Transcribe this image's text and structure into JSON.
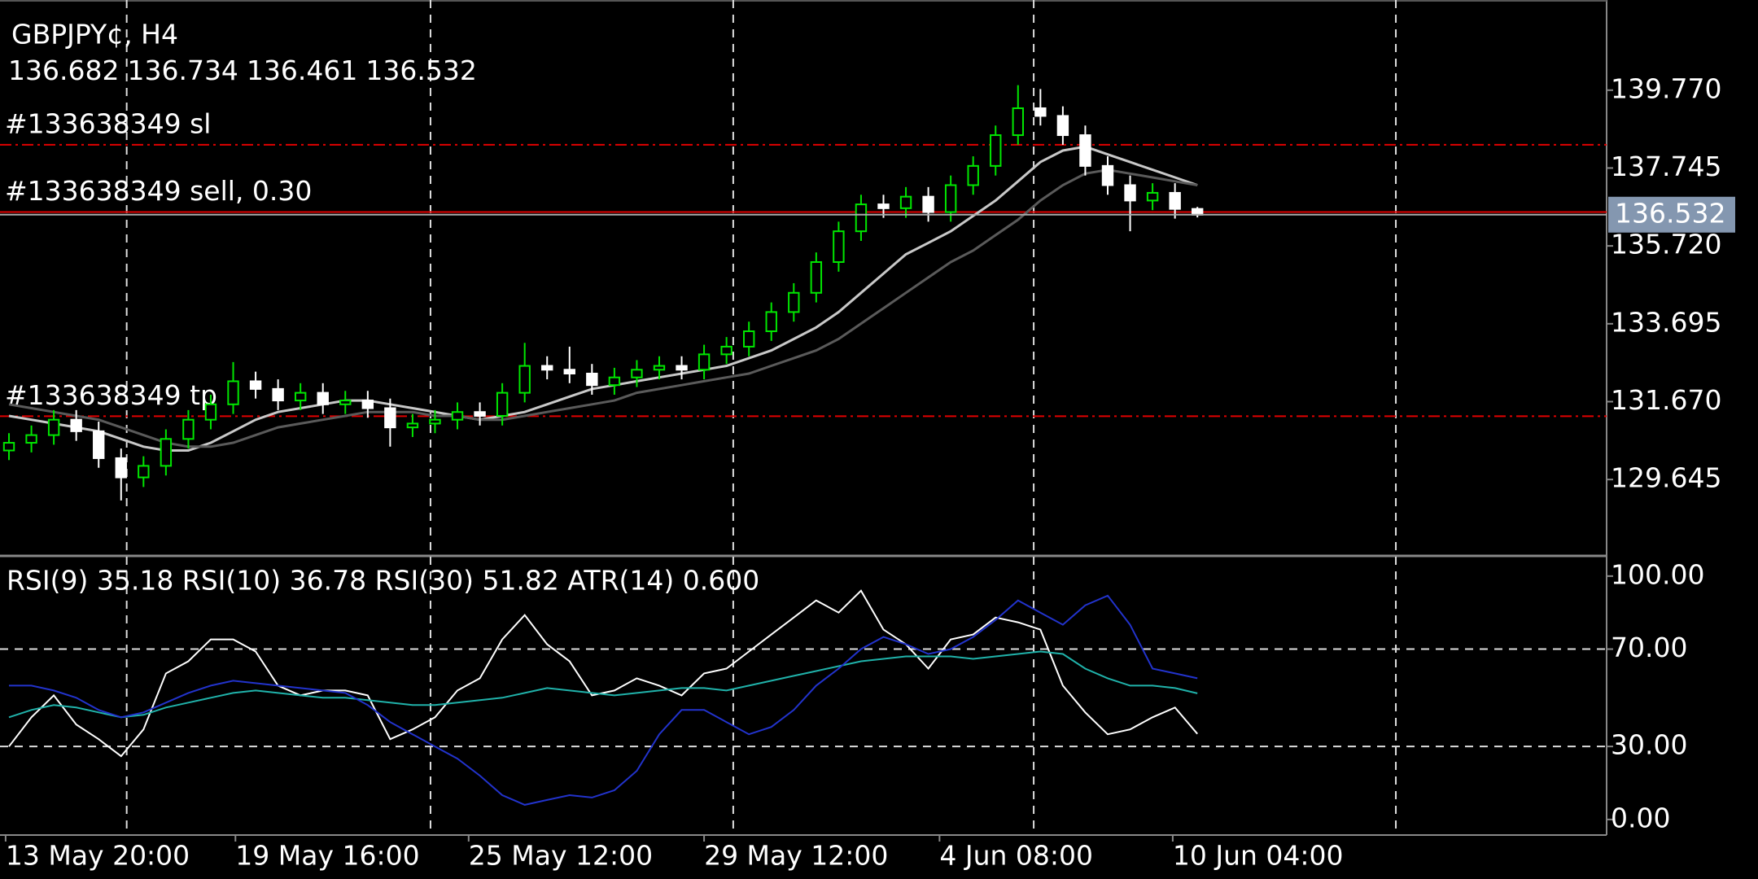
{
  "chart_data": [
    {
      "type": "candlestick",
      "title": "GBPJPY¢, H4",
      "xlim": [
        -0.4,
        71.25
      ],
      "xticks": [
        {
          "value": -0.15,
          "label": "13 May 20:00"
        },
        {
          "value": 10.1,
          "label": "19 May 16:00"
        },
        {
          "value": 20.5,
          "label": "25 May 12:00"
        },
        {
          "value": 31,
          "label": "29 May 12:00"
        },
        {
          "value": 41.5,
          "label": "4 Jun 08:00"
        },
        {
          "value": 51.9,
          "label": "10 Jun 04:00"
        }
      ],
      "x_grid": [
        5.25,
        18.8,
        32.3,
        45.7,
        61.85
      ],
      "open": [
        130.4,
        130.6,
        130.8,
        131.2,
        130.9,
        130.2,
        129.7,
        130.0,
        130.7,
        131.2,
        131.6,
        132.2,
        132.0,
        131.7,
        131.9,
        131.6,
        131.7,
        131.5,
        131.0,
        131.1,
        131.2,
        131.4,
        131.3,
        131.9,
        132.6,
        132.5,
        132.4,
        132.1,
        132.3,
        132.5,
        132.6,
        132.5,
        132.9,
        133.1,
        133.5,
        134.0,
        134.5,
        135.3,
        136.1,
        136.8,
        136.7,
        137.0,
        136.6,
        137.3,
        137.8,
        138.6,
        139.3,
        139.1,
        138.6,
        137.8,
        137.3,
        136.9,
        137.1,
        136.682
      ],
      "high": [
        130.85,
        131.05,
        131.45,
        131.45,
        131.15,
        130.45,
        130.25,
        130.95,
        131.45,
        131.85,
        132.7,
        132.45,
        132.25,
        132.15,
        132.15,
        131.95,
        131.95,
        131.75,
        131.35,
        131.45,
        131.65,
        131.65,
        132.15,
        133.2,
        132.85,
        133.1,
        132.65,
        132.55,
        132.75,
        132.85,
        132.85,
        133.15,
        133.35,
        133.75,
        134.25,
        134.75,
        135.55,
        136.35,
        137.05,
        137.05,
        137.25,
        137.25,
        137.55,
        138.05,
        138.85,
        139.9,
        139.8,
        139.35,
        138.85,
        138.05,
        137.55,
        137.35,
        137.35,
        136.734
      ],
      "low": [
        130.15,
        130.35,
        130.55,
        130.65,
        129.95,
        129.1,
        129.45,
        129.75,
        130.45,
        130.95,
        131.35,
        131.75,
        131.45,
        131.45,
        131.35,
        131.35,
        131.25,
        130.5,
        130.75,
        130.85,
        130.95,
        131.05,
        131.05,
        131.65,
        132.25,
        132.15,
        131.85,
        131.85,
        132.05,
        132.25,
        132.25,
        132.25,
        132.65,
        132.85,
        133.25,
        133.75,
        134.25,
        135.05,
        135.85,
        136.45,
        136.45,
        136.35,
        136.35,
        137.05,
        137.55,
        138.35,
        138.85,
        138.35,
        137.55,
        137.05,
        136.1,
        136.65,
        136.43,
        136.461
      ],
      "close": [
        130.6,
        130.8,
        131.2,
        130.9,
        130.2,
        129.7,
        130.0,
        130.7,
        131.2,
        131.6,
        132.2,
        132.0,
        131.7,
        131.9,
        131.6,
        131.7,
        131.5,
        131.0,
        131.1,
        131.2,
        131.4,
        131.3,
        131.9,
        132.6,
        132.5,
        132.4,
        132.1,
        132.3,
        132.5,
        132.6,
        132.5,
        132.9,
        133.1,
        133.5,
        134.0,
        134.5,
        135.3,
        136.1,
        136.8,
        136.7,
        137.0,
        136.6,
        137.3,
        137.8,
        138.6,
        139.3,
        139.1,
        138.6,
        137.8,
        137.3,
        136.9,
        137.1,
        136.682,
        136.532
      ],
      "up_color": "#00e600",
      "down_color": "#ffffff",
      "ylim": [
        127.68,
        142.03
      ],
      "yticks": [
        {
          "value": 139.77,
          "label": "139.770"
        },
        {
          "value": 137.745,
          "label": "137.745"
        },
        {
          "value": 135.72,
          "label": "135.720"
        },
        {
          "value": 133.695,
          "label": "133.695"
        },
        {
          "value": 131.67,
          "label": "131.670"
        },
        {
          "value": 129.645,
          "label": "129.645"
        }
      ],
      "series": [
        {
          "color": "#c8c8c8",
          "values": [
            131.3,
            131.2,
            131.1,
            131.0,
            130.9,
            130.7,
            130.5,
            130.4,
            130.4,
            130.6,
            130.9,
            131.2,
            131.4,
            131.5,
            131.6,
            131.7,
            131.7,
            131.6,
            131.5,
            131.4,
            131.3,
            131.2,
            131.3,
            131.4,
            131.6,
            131.8,
            132.0,
            132.1,
            132.2,
            132.3,
            132.4,
            132.5,
            132.6,
            132.8,
            133.0,
            133.3,
            133.6,
            134.0,
            134.5,
            135.0,
            135.5,
            135.8,
            136.1,
            136.5,
            136.9,
            137.4,
            137.9,
            138.2,
            138.3,
            138.1,
            137.9,
            137.7,
            137.5,
            137.3
          ]
        },
        {
          "color": "#5a5a5a",
          "values": [
            131.6,
            131.5,
            131.4,
            131.3,
            131.2,
            131.0,
            130.8,
            130.6,
            130.5,
            130.5,
            130.6,
            130.8,
            131.0,
            131.1,
            131.2,
            131.3,
            131.4,
            131.4,
            131.4,
            131.3,
            131.3,
            131.2,
            131.2,
            131.3,
            131.4,
            131.5,
            131.6,
            131.7,
            131.9,
            132.0,
            132.1,
            132.2,
            132.3,
            132.4,
            132.6,
            132.8,
            133.0,
            133.3,
            133.7,
            134.1,
            134.5,
            134.9,
            135.3,
            135.6,
            136.0,
            136.4,
            136.9,
            137.3,
            137.6,
            137.7,
            137.6,
            137.5,
            137.4,
            137.3
          ]
        }
      ],
      "levels": [
        {
          "label": "#133638349 sl",
          "value": 138.35,
          "color": "#e00000",
          "dashed": true
        },
        {
          "label": "#133638349 sell, 0.30",
          "value": 136.6,
          "color": "#e00000",
          "dashed": false
        },
        {
          "label": "#133638349 tp",
          "value": 131.29,
          "color": "#e00000",
          "dashed": true
        }
      ],
      "bid_color": "#8497b0"
    },
    {
      "type": "line",
      "title": "RSI(9) 35.18 RSI(10) 36.78 RSI(30) 51.82 ATR(14) 0.600",
      "xlim": [
        -0.4,
        71.25
      ],
      "ylim": [
        -6.4,
        107.3
      ],
      "yticks": [
        {
          "value": 100,
          "label": "100.00"
        },
        {
          "value": 70,
          "label": "70.00"
        },
        {
          "value": 30,
          "label": "30.00"
        },
        {
          "value": 0,
          "label": "0.00"
        }
      ],
      "levels": [
        70,
        30
      ],
      "series": [
        {
          "color": "#ffffff",
          "values": [
            30,
            42,
            51,
            39,
            33,
            26,
            37,
            60,
            65,
            74,
            74,
            69,
            55,
            51,
            53,
            53,
            51,
            33,
            37,
            42,
            53,
            58,
            74,
            84,
            72,
            65,
            51,
            53,
            58,
            55,
            51,
            60,
            62,
            69,
            76,
            83,
            90,
            85,
            94,
            78,
            72,
            62,
            74,
            76,
            83,
            81,
            78,
            55,
            44,
            35,
            37,
            42,
            46,
            35.18
          ]
        },
        {
          "color": "#20b2aa",
          "values": [
            42,
            45,
            47,
            46,
            44,
            42,
            43,
            46,
            48,
            50,
            52,
            53,
            52,
            51,
            50,
            50,
            49,
            48,
            47,
            47,
            48,
            49,
            50,
            52,
            54,
            53,
            52,
            51,
            52,
            53,
            54,
            54,
            53,
            55,
            57,
            59,
            61,
            63,
            65,
            66,
            67,
            67,
            67,
            66,
            67,
            68,
            69,
            68,
            62,
            58,
            55,
            55,
            54,
            51.82
          ]
        },
        {
          "color": "#2233cc",
          "values": [
            55,
            55,
            53,
            50,
            45,
            42,
            44,
            48,
            52,
            55,
            57,
            56,
            55,
            54,
            53,
            52,
            47,
            40,
            35,
            30,
            25,
            18,
            10,
            6,
            8,
            10,
            9,
            12,
            20,
            35,
            45,
            45,
            40,
            35,
            38,
            45,
            55,
            62,
            70,
            75,
            72,
            68,
            70,
            75,
            82,
            90,
            85,
            80,
            88,
            92,
            80,
            62,
            60,
            58
          ]
        }
      ]
    }
  ]
}
